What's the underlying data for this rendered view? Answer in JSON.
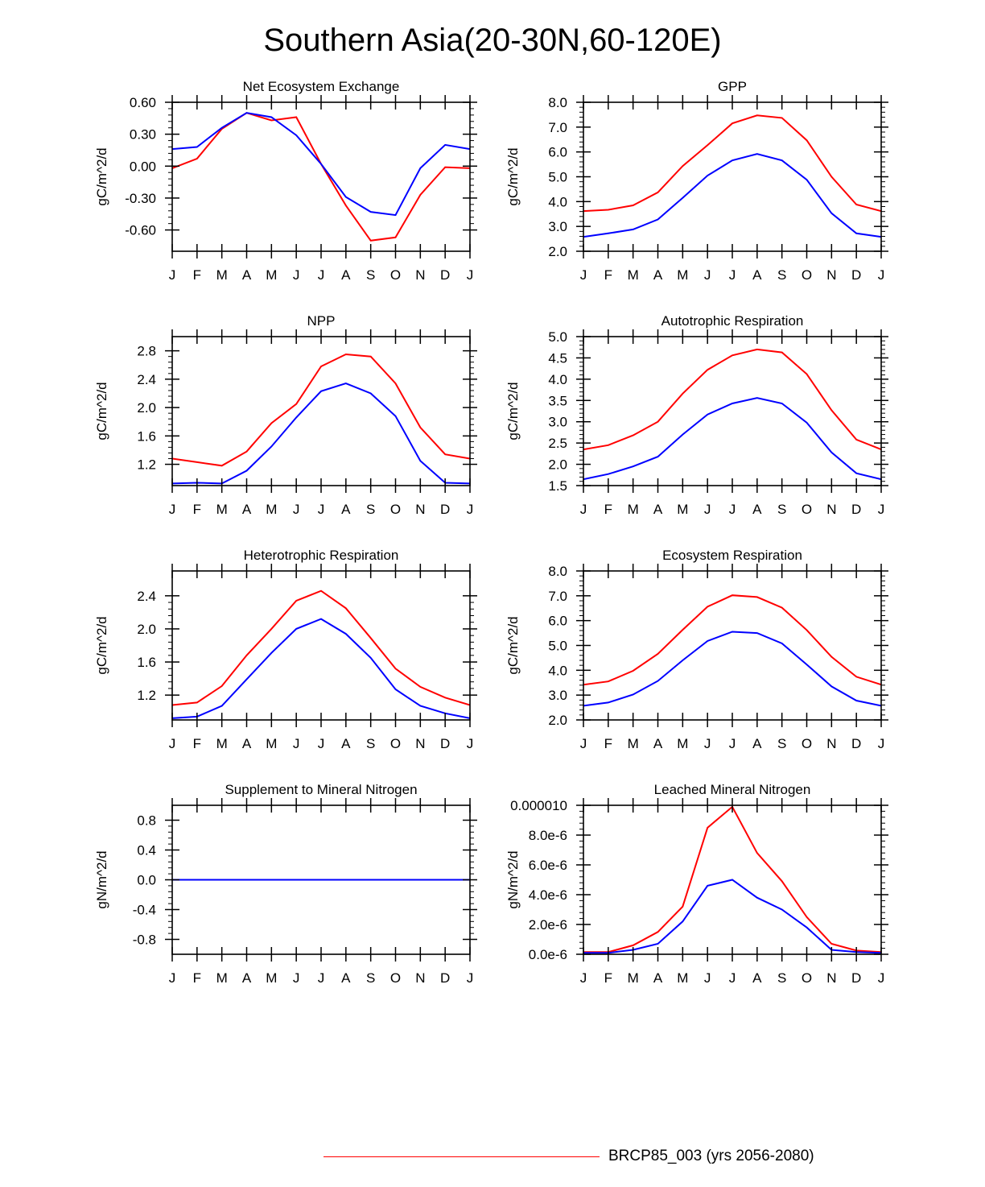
{
  "title": "Southern Asia(20-30N,60-120E)",
  "legend": {
    "label": "BRCP85_003 (yrs 2056-2080)",
    "color": "#ff0000"
  },
  "colors": {
    "series_a": "#ff0000",
    "series_b": "#0000ff"
  },
  "chart_data": [
    {
      "type": "line",
      "title": "Net Ecosystem Exchange",
      "ylabel": "gC/m^2/d",
      "categories": [
        "J",
        "F",
        "M",
        "A",
        "M",
        "J",
        "J",
        "A",
        "S",
        "O",
        "N",
        "D",
        "J"
      ],
      "ylim": [
        -0.8,
        0.6
      ],
      "yticks": [
        -0.6,
        -0.3,
        0.0,
        0.3,
        0.6
      ],
      "ytick_labels": [
        "-0.60",
        "-0.30",
        "0.00",
        "0.30",
        "0.60"
      ],
      "series": [
        {
          "name": "red",
          "values": [
            -0.02,
            0.07,
            0.35,
            0.5,
            0.43,
            0.46,
            0.02,
            -0.37,
            -0.7,
            -0.67,
            -0.27,
            -0.01,
            -0.02
          ]
        },
        {
          "name": "blue",
          "values": [
            0.16,
            0.18,
            0.36,
            0.5,
            0.46,
            0.29,
            0.02,
            -0.29,
            -0.43,
            -0.46,
            -0.02,
            0.2,
            0.16
          ]
        }
      ]
    },
    {
      "type": "line",
      "title": "GPP",
      "ylabel": "gC/m^2/d",
      "categories": [
        "J",
        "F",
        "M",
        "A",
        "M",
        "J",
        "J",
        "A",
        "S",
        "O",
        "N",
        "D",
        "J"
      ],
      "ylim": [
        2.0,
        8.0
      ],
      "yticks": [
        2.0,
        3.0,
        4.0,
        5.0,
        6.0,
        7.0,
        8.0
      ],
      "ytick_labels": [
        "2.0",
        "3.0",
        "4.0",
        "5.0",
        "6.0",
        "7.0",
        "8.0"
      ],
      "series": [
        {
          "name": "red",
          "values": [
            3.62,
            3.67,
            3.85,
            4.37,
            5.43,
            6.27,
            7.15,
            7.47,
            7.37,
            6.47,
            5.0,
            3.88,
            3.62
          ]
        },
        {
          "name": "blue",
          "values": [
            2.58,
            2.72,
            2.88,
            3.28,
            4.15,
            5.05,
            5.66,
            5.92,
            5.66,
            4.88,
            3.53,
            2.72,
            2.58
          ]
        }
      ]
    },
    {
      "type": "line",
      "title": "NPP",
      "ylabel": "gC/m^2/d",
      "categories": [
        "J",
        "F",
        "M",
        "A",
        "M",
        "J",
        "J",
        "A",
        "S",
        "O",
        "N",
        "D",
        "J"
      ],
      "ylim": [
        0.9,
        3.0
      ],
      "yticks": [
        1.2,
        1.6,
        2.0,
        2.4,
        2.8
      ],
      "ytick_labels": [
        "1.2",
        "1.6",
        "2.0",
        "2.4",
        "2.8"
      ],
      "series": [
        {
          "name": "red",
          "values": [
            1.28,
            1.23,
            1.18,
            1.38,
            1.78,
            2.05,
            2.58,
            2.75,
            2.72,
            2.34,
            1.72,
            1.34,
            1.28
          ]
        },
        {
          "name": "blue",
          "values": [
            0.93,
            0.94,
            0.93,
            1.11,
            1.45,
            1.86,
            2.23,
            2.34,
            2.2,
            1.88,
            1.25,
            0.94,
            0.93
          ]
        }
      ]
    },
    {
      "type": "line",
      "title": "Autotrophic Respiration",
      "ylabel": "gC/m^2/d",
      "categories": [
        "J",
        "F",
        "M",
        "A",
        "M",
        "J",
        "J",
        "A",
        "S",
        "O",
        "N",
        "D",
        "J"
      ],
      "ylim": [
        1.5,
        5.0
      ],
      "yticks": [
        1.5,
        2.0,
        2.5,
        3.0,
        3.5,
        4.0,
        4.5,
        5.0
      ],
      "ytick_labels": [
        "1.5",
        "2.0",
        "2.5",
        "3.0",
        "3.5",
        "4.0",
        "4.5",
        "5.0"
      ],
      "series": [
        {
          "name": "red",
          "values": [
            2.35,
            2.45,
            2.68,
            3.0,
            3.66,
            4.22,
            4.56,
            4.7,
            4.63,
            4.12,
            3.27,
            2.58,
            2.35
          ]
        },
        {
          "name": "blue",
          "values": [
            1.65,
            1.77,
            1.95,
            2.18,
            2.7,
            3.17,
            3.43,
            3.56,
            3.43,
            2.98,
            2.28,
            1.79,
            1.65
          ]
        }
      ]
    },
    {
      "type": "line",
      "title": "Heterotrophic Respiration",
      "ylabel": "gC/m^2/d",
      "categories": [
        "J",
        "F",
        "M",
        "A",
        "M",
        "J",
        "J",
        "A",
        "S",
        "O",
        "N",
        "D",
        "J"
      ],
      "ylim": [
        0.9,
        2.7
      ],
      "yticks": [
        1.2,
        1.6,
        2.0,
        2.4
      ],
      "ytick_labels": [
        "1.2",
        "1.6",
        "2.0",
        "2.4"
      ],
      "series": [
        {
          "name": "red",
          "values": [
            1.08,
            1.11,
            1.31,
            1.68,
            2.0,
            2.34,
            2.46,
            2.25,
            1.89,
            1.52,
            1.3,
            1.17,
            1.08
          ]
        },
        {
          "name": "blue",
          "values": [
            0.92,
            0.94,
            1.07,
            1.39,
            1.71,
            2.0,
            2.12,
            1.94,
            1.65,
            1.27,
            1.07,
            0.98,
            0.92
          ]
        }
      ]
    },
    {
      "type": "line",
      "title": "Ecosystem Respiration",
      "ylabel": "gC/m^2/d",
      "categories": [
        "J",
        "F",
        "M",
        "A",
        "M",
        "J",
        "J",
        "A",
        "S",
        "O",
        "N",
        "D",
        "J"
      ],
      "ylim": [
        2.0,
        8.0
      ],
      "yticks": [
        2.0,
        3.0,
        4.0,
        5.0,
        6.0,
        7.0,
        8.0
      ],
      "ytick_labels": [
        "2.0",
        "3.0",
        "4.0",
        "5.0",
        "6.0",
        "7.0",
        "8.0"
      ],
      "series": [
        {
          "name": "red",
          "values": [
            3.42,
            3.55,
            3.98,
            4.66,
            5.63,
            6.56,
            7.02,
            6.95,
            6.52,
            5.62,
            4.54,
            3.74,
            3.42
          ]
        },
        {
          "name": "blue",
          "values": [
            2.57,
            2.7,
            3.02,
            3.57,
            4.4,
            5.18,
            5.55,
            5.5,
            5.08,
            4.23,
            3.35,
            2.78,
            2.57
          ]
        }
      ]
    },
    {
      "type": "line",
      "title": "Supplement to Mineral Nitrogen",
      "ylabel": "gN/m^2/d",
      "categories": [
        "J",
        "F",
        "M",
        "A",
        "M",
        "J",
        "J",
        "A",
        "S",
        "O",
        "N",
        "D",
        "J"
      ],
      "ylim": [
        -1.0,
        1.0
      ],
      "yticks": [
        -0.8,
        -0.4,
        0.0,
        0.4,
        0.8
      ],
      "ytick_labels": [
        "-0.8",
        "-0.4",
        "0.0",
        "0.4",
        "0.8"
      ],
      "series": [
        {
          "name": "red",
          "values": [
            0,
            0,
            0,
            0,
            0,
            0,
            0,
            0,
            0,
            0,
            0,
            0,
            0
          ]
        },
        {
          "name": "blue",
          "values": [
            0,
            0,
            0,
            0,
            0,
            0,
            0,
            0,
            0,
            0,
            0,
            0,
            0
          ]
        }
      ]
    },
    {
      "type": "line",
      "title": "Leached Mineral Nitrogen",
      "ylabel": "gN/m^2/d",
      "categories": [
        "J",
        "F",
        "M",
        "A",
        "M",
        "J",
        "J",
        "A",
        "S",
        "O",
        "N",
        "D",
        "J"
      ],
      "ylim": [
        0,
        1e-05
      ],
      "yticks": [
        0,
        2e-06,
        4e-06,
        6e-06,
        8e-06,
        1e-05
      ],
      "ytick_labels": [
        "0.0e-6",
        "2.0e-6",
        "4.0e-6",
        "6.0e-6",
        "8.0e-6",
        "0.000010"
      ],
      "series": [
        {
          "name": "red",
          "values": [
            1.5e-07,
            1.5e-07,
            6e-07,
            1.5e-06,
            3.2e-06,
            8.5e-06,
            9.9e-06,
            6.8e-06,
            4.9e-06,
            2.5e-06,
            7e-07,
            2.5e-07,
            1.5e-07
          ]
        },
        {
          "name": "blue",
          "values": [
            1e-07,
            1e-07,
            3e-07,
            7e-07,
            2.2e-06,
            4.6e-06,
            5e-06,
            3.8e-06,
            3e-06,
            1.8e-06,
            3e-07,
            1.5e-07,
            1e-07
          ]
        }
      ]
    }
  ]
}
